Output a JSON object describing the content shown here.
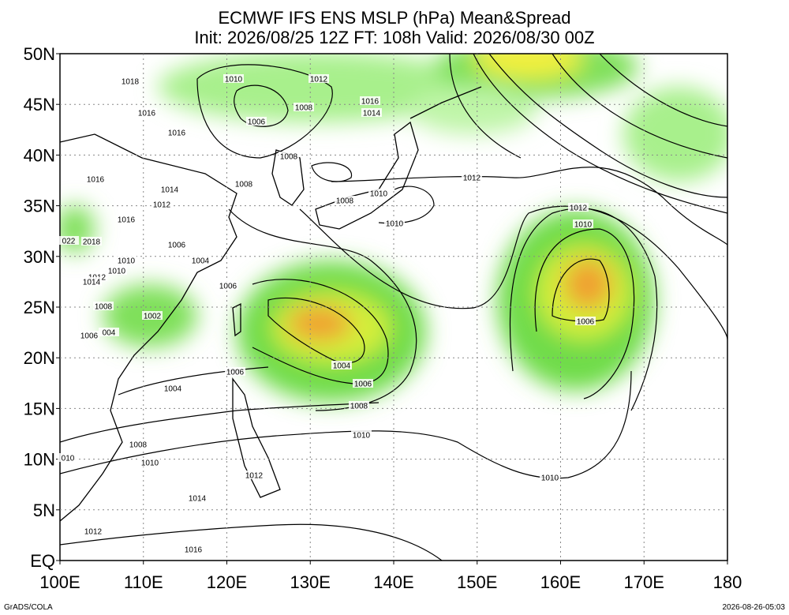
{
  "header": {
    "title": "ECMWF IFS ENS MSLP (hPa) Mean&Spread",
    "subtitle": "Init: 2026/08/25 12Z  FT: 108h  Valid: 2026/08/30 00Z"
  },
  "map": {
    "lat_labels": [
      "50N",
      "45N",
      "40N",
      "35N",
      "30N",
      "25N",
      "20N",
      "15N",
      "10N",
      "5N",
      "EQ"
    ],
    "lon_labels": [
      "100E",
      "110E",
      "120E",
      "130E",
      "140E",
      "150E",
      "160E",
      "170E",
      "180"
    ],
    "contour_labels": [
      "1018",
      "1010",
      "1012",
      "1016",
      "1006",
      "1008",
      "1016",
      "1014",
      "1016",
      "1008",
      "1012",
      "1016",
      "1008",
      "1014",
      "1012",
      "1010",
      "1008",
      "1016",
      "1012",
      "1010",
      "1010",
      "022",
      "2018",
      "1006",
      "1004",
      "1010",
      "1010",
      "1012",
      "1014",
      "1006",
      "1008",
      "1002",
      "1006",
      "1006",
      "004",
      "1004",
      "1006",
      "1006",
      "1004",
      "1008",
      "1010",
      "1008",
      "010",
      "1010",
      "1010",
      "1012",
      "1014",
      "1012",
      "1016"
    ]
  },
  "footer": {
    "left": "GrADS/COLA",
    "right": "2026-08-26-05:03"
  }
}
